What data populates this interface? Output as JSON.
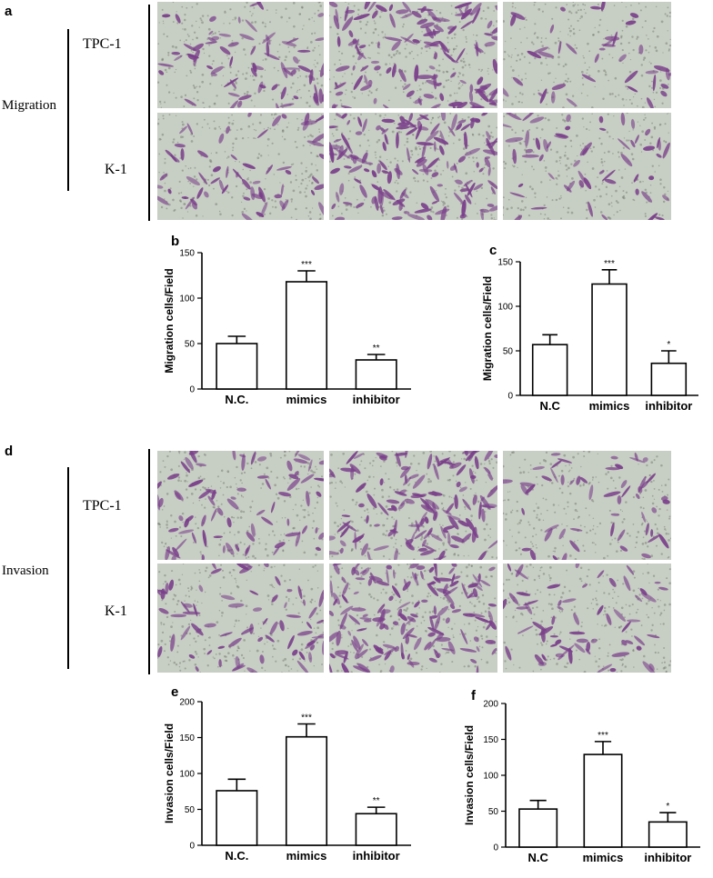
{
  "section_top": {
    "letter": "a",
    "side_label": "Migration",
    "rows": [
      "TPC-1",
      "K-1"
    ],
    "density": [
      [
        1.0,
        1.8,
        0.55
      ],
      [
        0.9,
        2.1,
        0.8
      ]
    ]
  },
  "section_bottom": {
    "letter": "d",
    "side_label": "Invasion",
    "rows": [
      "TPC-1",
      "K-1"
    ],
    "density": [
      [
        1.1,
        1.9,
        0.75
      ],
      [
        1.0,
        2.2,
        0.9
      ]
    ]
  },
  "colors": {
    "stain": "#7a3f8a",
    "background": "#c7cec4",
    "bar_fill": "#ffffff",
    "stroke": "#000000"
  },
  "chart_data": [
    {
      "panel": "b",
      "type": "bar",
      "categories": [
        "N.C.",
        "mimics",
        "inhibitor"
      ],
      "values": [
        50,
        118,
        32
      ],
      "errors": [
        8,
        12,
        6
      ],
      "significance": [
        "",
        "***",
        "**"
      ],
      "ylabel": "Migration cells/Field",
      "ylim": [
        0,
        150
      ],
      "yticks": [
        0,
        50,
        100,
        150
      ]
    },
    {
      "panel": "c",
      "type": "bar",
      "categories": [
        "N.C",
        "mimics",
        "inhibitor"
      ],
      "values": [
        57,
        125,
        36
      ],
      "errors": [
        11,
        16,
        14
      ],
      "significance": [
        "",
        "***",
        "*"
      ],
      "ylabel": "Migration cells/Field",
      "ylim": [
        0,
        150
      ],
      "yticks": [
        0,
        50,
        100,
        150
      ]
    },
    {
      "panel": "e",
      "type": "bar",
      "categories": [
        "N.C.",
        "mimics",
        "inhibitor"
      ],
      "values": [
        76,
        151,
        44
      ],
      "errors": [
        16,
        18,
        9
      ],
      "significance": [
        "",
        "***",
        "**"
      ],
      "ylabel": "Invasion cells/Field",
      "ylim": [
        0,
        200
      ],
      "yticks": [
        0,
        50,
        100,
        150,
        200
      ]
    },
    {
      "panel": "f",
      "type": "bar",
      "categories": [
        "N.C",
        "mimics",
        "inhibitor"
      ],
      "values": [
        53,
        129,
        35
      ],
      "errors": [
        12,
        18,
        13
      ],
      "significance": [
        "",
        "***",
        "*"
      ],
      "ylabel": "Invasion cells/Field",
      "ylim": [
        0,
        200
      ],
      "yticks": [
        0,
        50,
        100,
        150,
        200
      ]
    }
  ]
}
